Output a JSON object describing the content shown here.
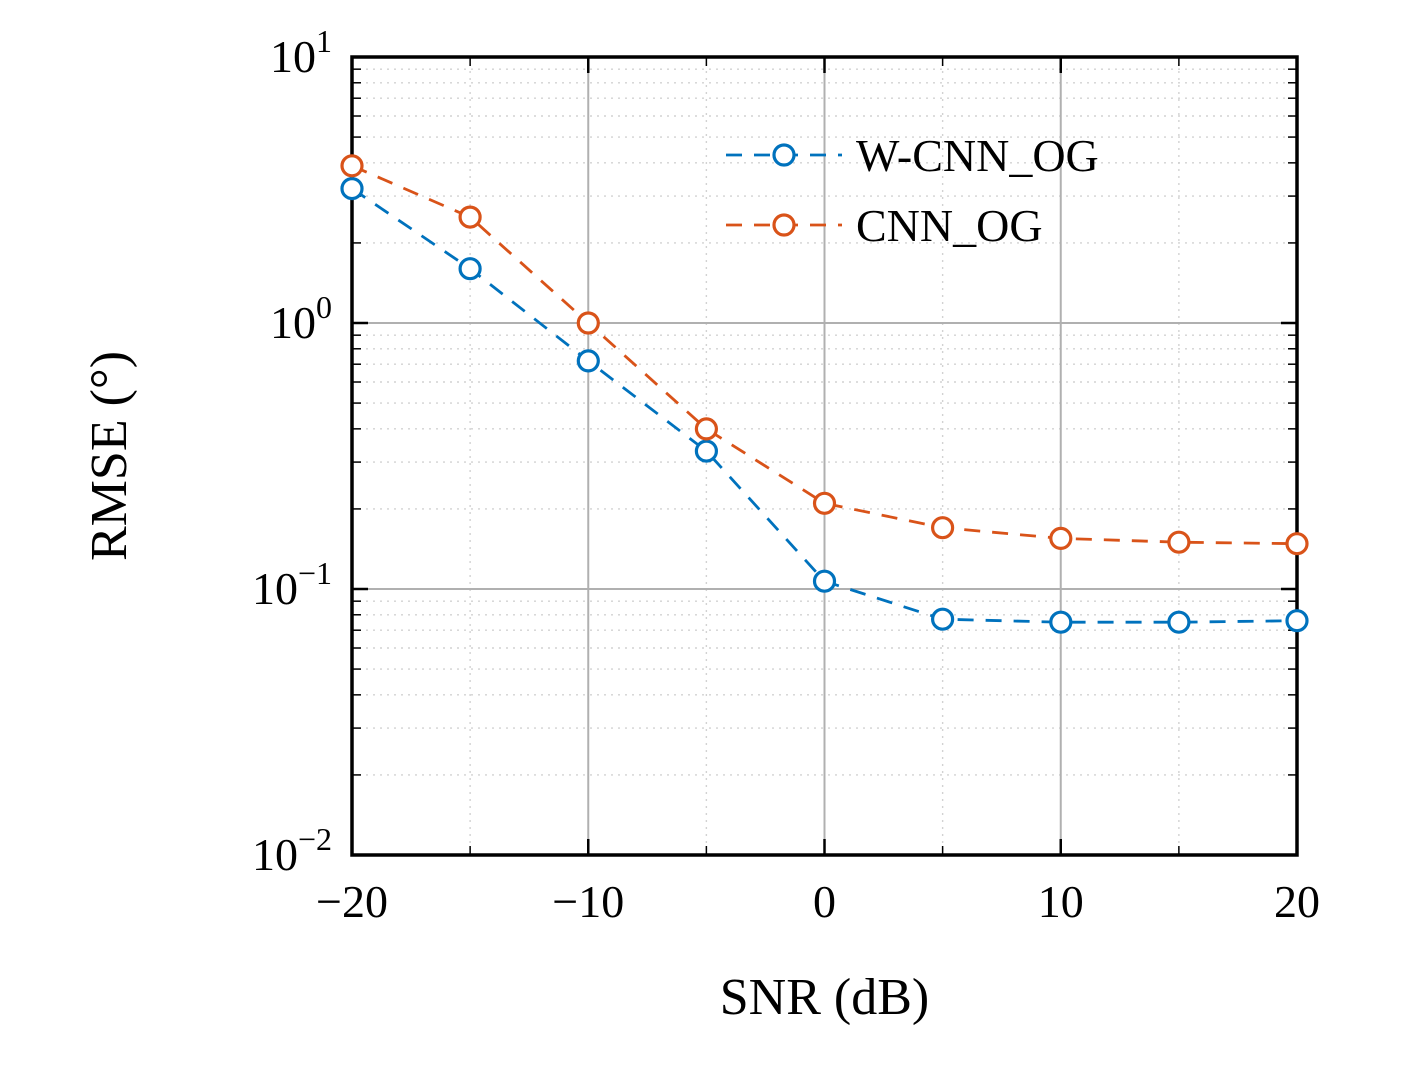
{
  "chart_data": {
    "type": "line",
    "title": "",
    "xlabel": "SNR (dB)",
    "ylabel": "RMSE (°)",
    "x": [
      -20,
      -15,
      -10,
      -5,
      0,
      5,
      10,
      15,
      20
    ],
    "series": [
      {
        "name": "W-CNN_OG",
        "color": "#0072BD",
        "line_style": "dashed",
        "marker": "circle",
        "values": [
          3.2,
          1.6,
          0.72,
          0.33,
          0.107,
          0.077,
          0.075,
          0.075,
          0.076
        ]
      },
      {
        "name": "CNN_OG",
        "color": "#D95319",
        "line_style": "dashed",
        "marker": "circle",
        "values": [
          3.9,
          2.5,
          1.0,
          0.4,
          0.21,
          0.17,
          0.155,
          0.15,
          0.148
        ]
      }
    ],
    "xlim": [
      -20,
      20
    ],
    "ylim": [
      0.01,
      10
    ],
    "yscale": "log",
    "xticks": [
      -20,
      -10,
      0,
      10,
      20
    ],
    "x_minor_step": 5,
    "ytick_exponents": [
      1,
      0,
      -1,
      -2
    ],
    "grid": true,
    "grid_minor": true,
    "legend_position": "upper-right",
    "colors": {
      "grid_major": "#b0b0b0",
      "grid_minor": "#d2d2d2",
      "axis": "#000000",
      "background": "#ffffff"
    }
  }
}
